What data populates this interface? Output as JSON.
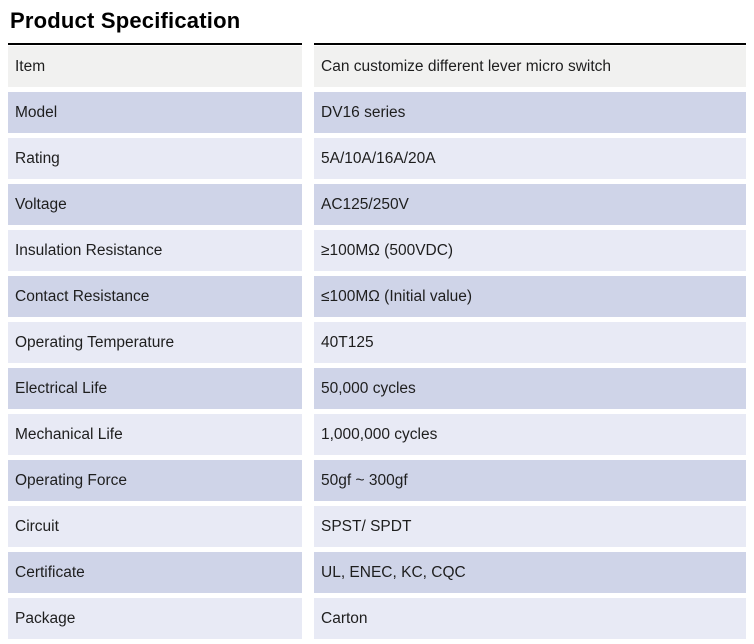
{
  "page": {
    "title": "Product Specification"
  },
  "colors": {
    "top_border": "#000000",
    "header_row_bg": "#f1f1f0",
    "row_dark_bg": "#cfd4e8",
    "row_light_bg": "#e8eaf5",
    "text": "#1e1e1e"
  },
  "table": {
    "rows": [
      {
        "key": "Item",
        "value": "Can customize different lever micro switch"
      },
      {
        "key": "Model",
        "value": "DV16 series"
      },
      {
        "key": "Rating",
        "value": "5A/10A/16A/20A"
      },
      {
        "key": "Voltage",
        "value": "AC125/250V"
      },
      {
        "key": "Insulation Resistance",
        "value": "≥100MΩ (500VDC)"
      },
      {
        "key": "Contact Resistance",
        "value": "≤100MΩ (Initial value)"
      },
      {
        "key": "Operating Temperature",
        "value": "40T125"
      },
      {
        "key": "Electrical Life",
        "value": "50,000 cycles"
      },
      {
        "key": "Mechanical Life",
        "value": "1,000,000 cycles"
      },
      {
        "key": "Operating Force",
        "value": "50gf ~ 300gf"
      },
      {
        "key": "Circuit",
        "value": "SPST/ SPDT"
      },
      {
        "key": "Certificate",
        "value": "UL, ENEC, KC, CQC"
      },
      {
        "key": "Package",
        "value": "Carton"
      }
    ]
  }
}
